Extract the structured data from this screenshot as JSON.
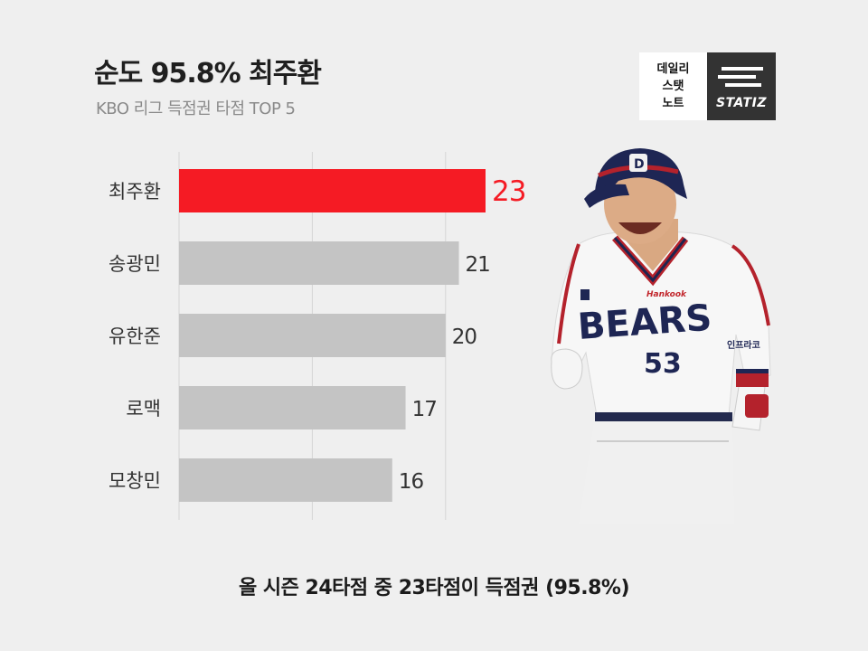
{
  "header": {
    "title": "순도 95.8% 최주환",
    "subtitle": "KBO 리그 득점권 타점 TOP 5"
  },
  "logos": {
    "daily_note_lines": [
      "데일리",
      "스탯",
      "노트"
    ],
    "statiz": "STATIZ"
  },
  "player_photo": {
    "team_text": "BEARS",
    "number": "53",
    "sponsor": "Hankook",
    "patch": "인프라코"
  },
  "chart_data": {
    "type": "bar",
    "orientation": "horizontal",
    "categories": [
      "최주환",
      "송광민",
      "유한준",
      "로맥",
      "모창민"
    ],
    "values": [
      23,
      21,
      20,
      17,
      16
    ],
    "xlim": [
      0,
      23
    ],
    "grid": true,
    "highlight_index": 0,
    "colors": {
      "highlight": "#f51b24",
      "default": "#c4c4c4",
      "grid": "#d4d4d4"
    }
  },
  "footer": {
    "note": "올 시즌 24타점 중 23타점이 득점권 (95.8%)"
  }
}
